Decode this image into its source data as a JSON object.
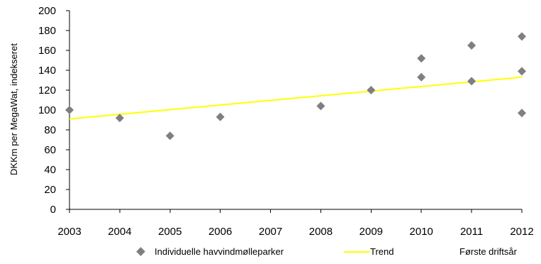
{
  "chart_data": {
    "type": "scatter",
    "title": "",
    "xlabel": "",
    "ylabel": "DKKm per MegaWat,  indekseret",
    "x_ticks": [
      "2003",
      "2004",
      "2005",
      "2006",
      "2007",
      "2008",
      "2009",
      "2010",
      "2011",
      "2012"
    ],
    "xlim": [
      "2003",
      "2012"
    ],
    "ylim": [
      0,
      200
    ],
    "y_ticks": [
      "0",
      "20",
      "40",
      "60",
      "80",
      "100",
      "120",
      "140",
      "160",
      "180",
      "200"
    ],
    "grid": false,
    "legend_position": "bottom",
    "series": [
      {
        "name": "Individuelle  havvindmølleparker",
        "marker": "diamond",
        "color": "#7f7f7f",
        "points": [
          {
            "x": "2003",
            "y": 100
          },
          {
            "x": "2004",
            "y": 92
          },
          {
            "x": "2005",
            "y": 74
          },
          {
            "x": "2006",
            "y": 93
          },
          {
            "x": "2008",
            "y": 104
          },
          {
            "x": "2009",
            "y": 120
          },
          {
            "x": "2010",
            "y": 152
          },
          {
            "x": "2010",
            "y": 133
          },
          {
            "x": "2011",
            "y": 165
          },
          {
            "x": "2011",
            "y": 129
          },
          {
            "x": "2012",
            "y": 174
          },
          {
            "x": "2012",
            "y": 139
          },
          {
            "x": "2012",
            "y": 97
          }
        ]
      },
      {
        "name": "Trend",
        "type": "line",
        "color": "#ffff00",
        "points": [
          {
            "x": "2003",
            "y": 91
          },
          {
            "x": "2012",
            "y": 133
          }
        ]
      }
    ],
    "legend_extra": "Første driftsår"
  }
}
